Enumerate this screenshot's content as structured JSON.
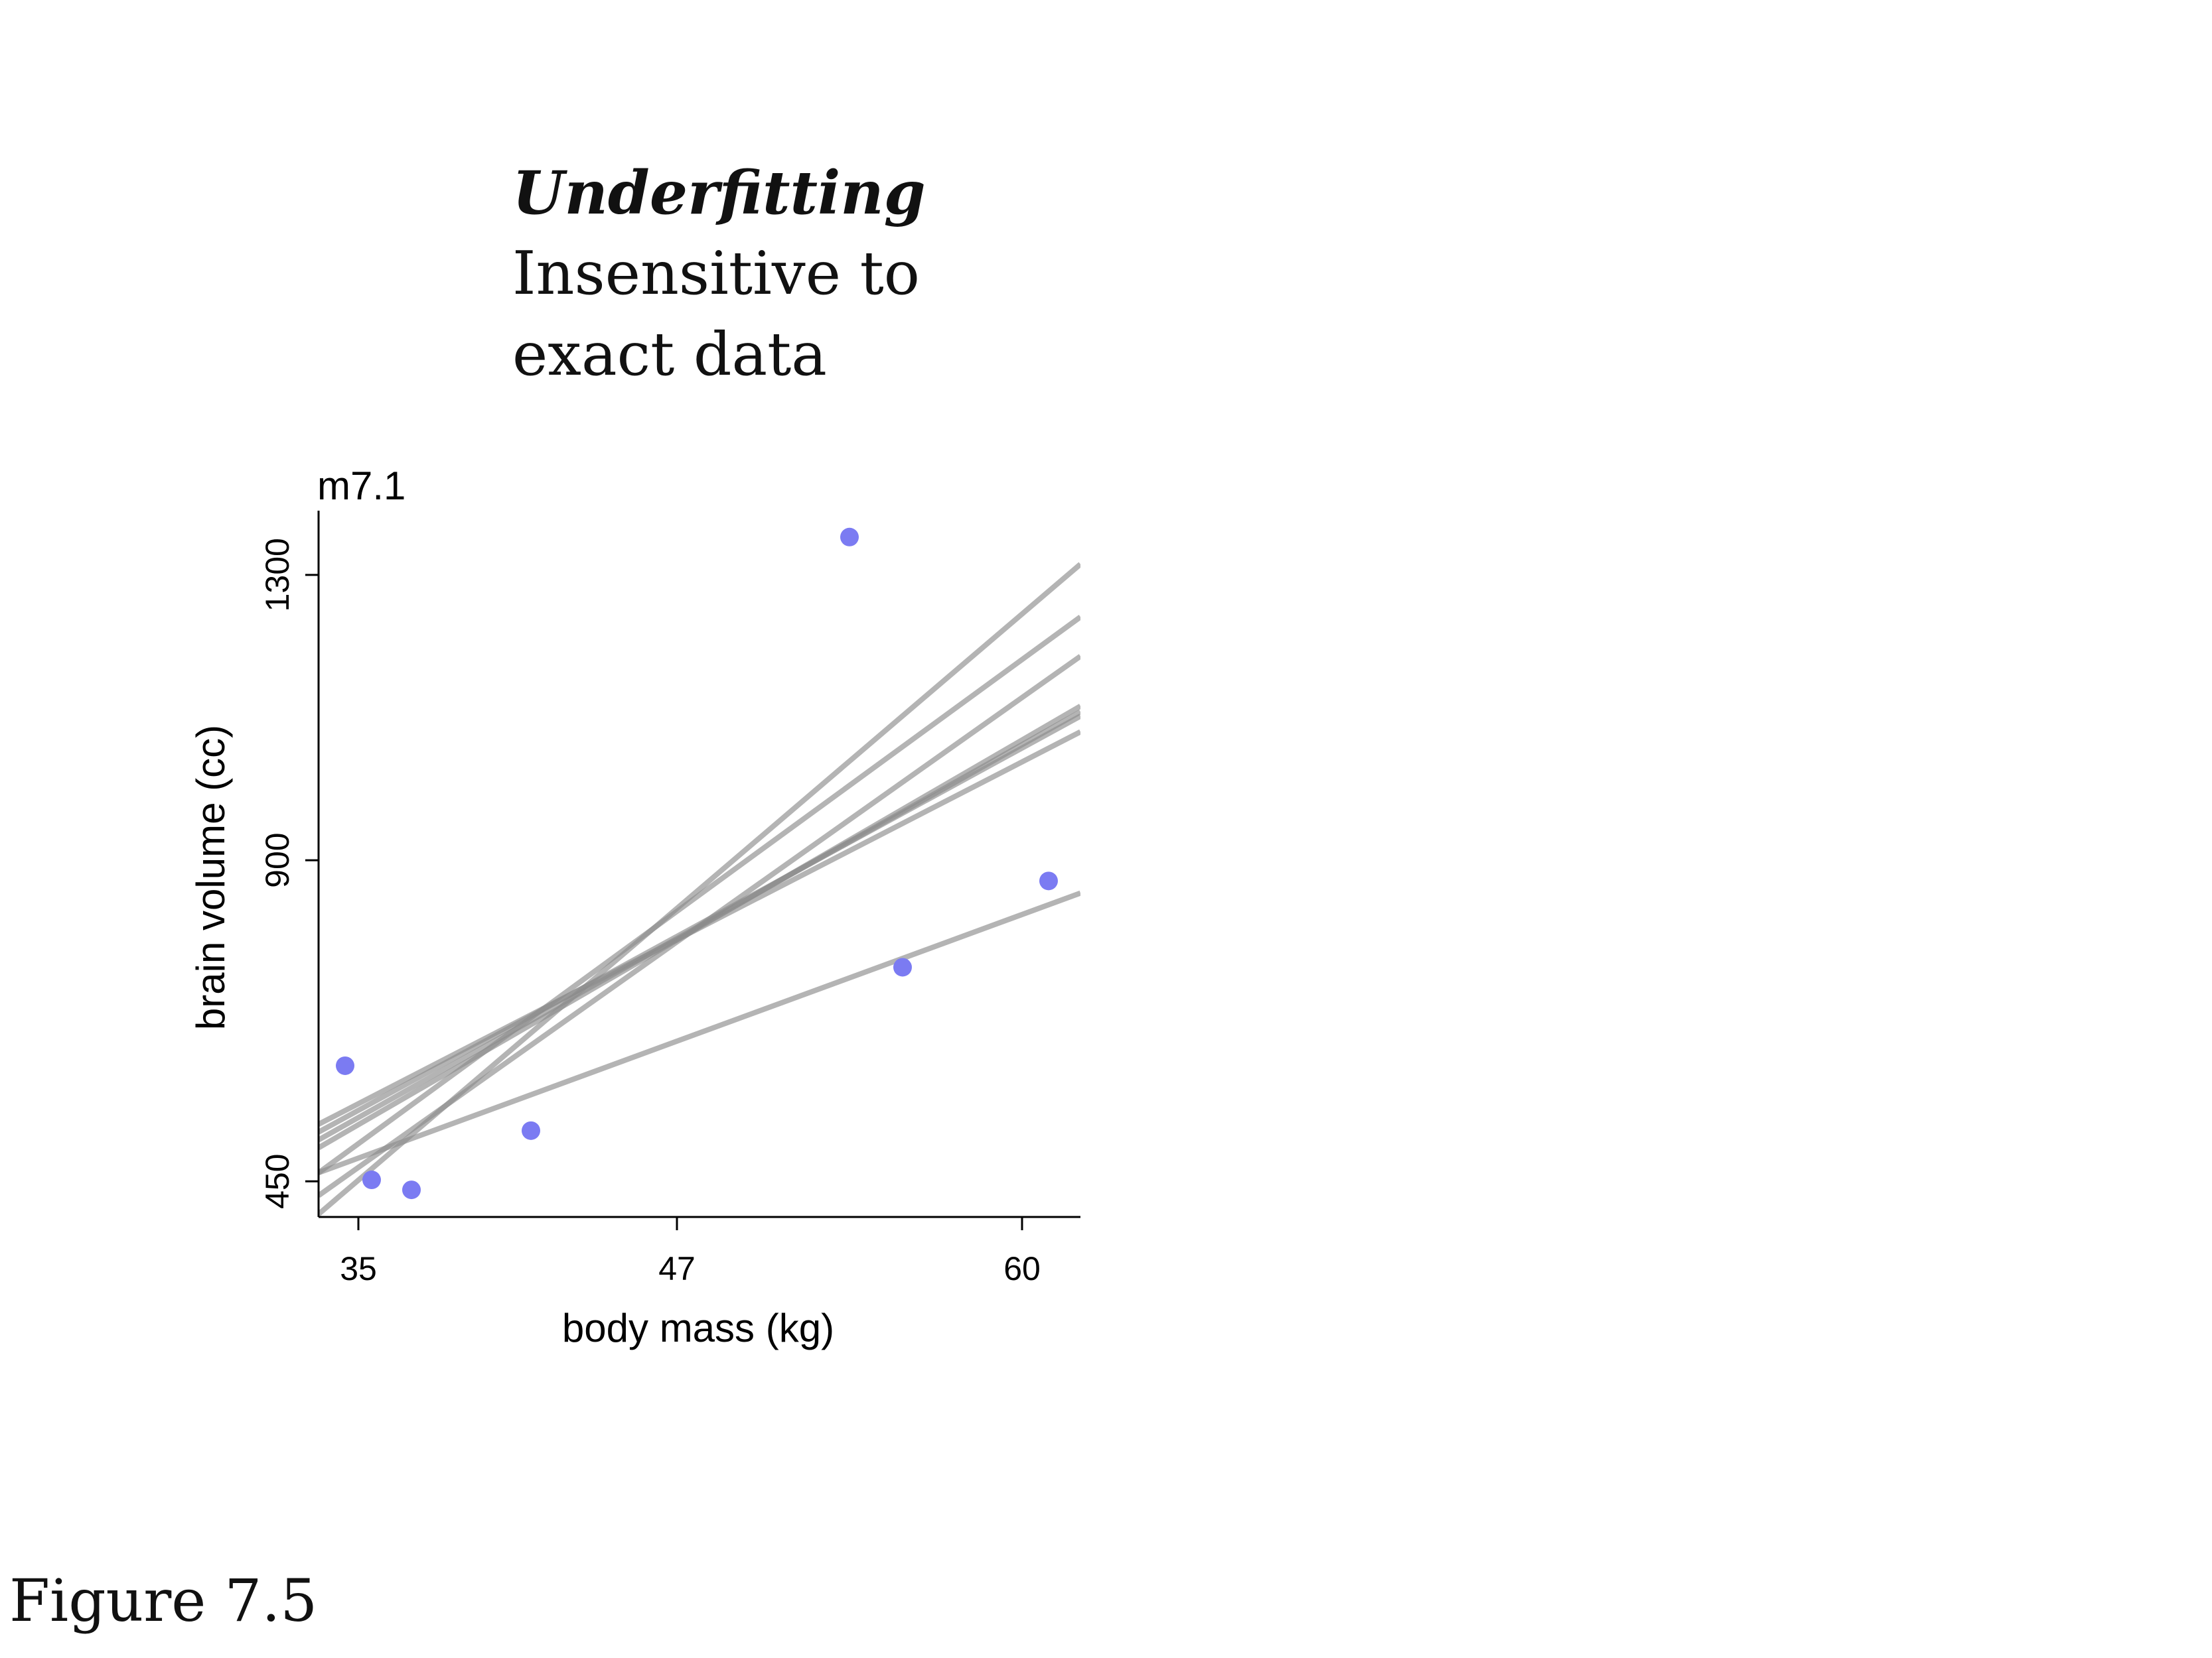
{
  "heading": {
    "title": "Underfitting",
    "line1": "Insensitive to",
    "line2": "exact data"
  },
  "figure_label": "Figure 7.5",
  "chart_data": {
    "type": "scatter",
    "title": "m7.1",
    "xlabel": "body mass (kg)",
    "ylabel": "brain volume (cc)",
    "xticks": [
      35,
      47,
      60
    ],
    "yticks": [
      450,
      900,
      1300
    ],
    "xlim": [
      33.5,
      62.2
    ],
    "ylim": [
      400,
      1390
    ],
    "points": {
      "color": "#7b7bf2",
      "x": [
        34.5,
        35.5,
        37.0,
        41.5,
        53.5,
        55.5,
        61.0
      ],
      "y": [
        612,
        452,
        438,
        521,
        1353,
        750,
        871
      ]
    },
    "lines": {
      "color": "#8c8c8c",
      "segments": [
        {
          "x1": 33.5,
          "y1": 497,
          "x2": 62.2,
          "y2": 1116
        },
        {
          "x1": 33.5,
          "y1": 508,
          "x2": 62.2,
          "y2": 1108
        },
        {
          "x1": 33.5,
          "y1": 519,
          "x2": 62.2,
          "y2": 1102
        },
        {
          "x1": 33.5,
          "y1": 530,
          "x2": 62.2,
          "y2": 1080
        },
        {
          "x1": 33.5,
          "y1": 430,
          "x2": 62.2,
          "y2": 1186
        },
        {
          "x1": 33.5,
          "y1": 462,
          "x2": 62.2,
          "y2": 1241
        },
        {
          "x1": 33.5,
          "y1": 404,
          "x2": 62.2,
          "y2": 1315
        },
        {
          "x1": 33.5,
          "y1": 462,
          "x2": 62.2,
          "y2": 854
        }
      ]
    }
  }
}
